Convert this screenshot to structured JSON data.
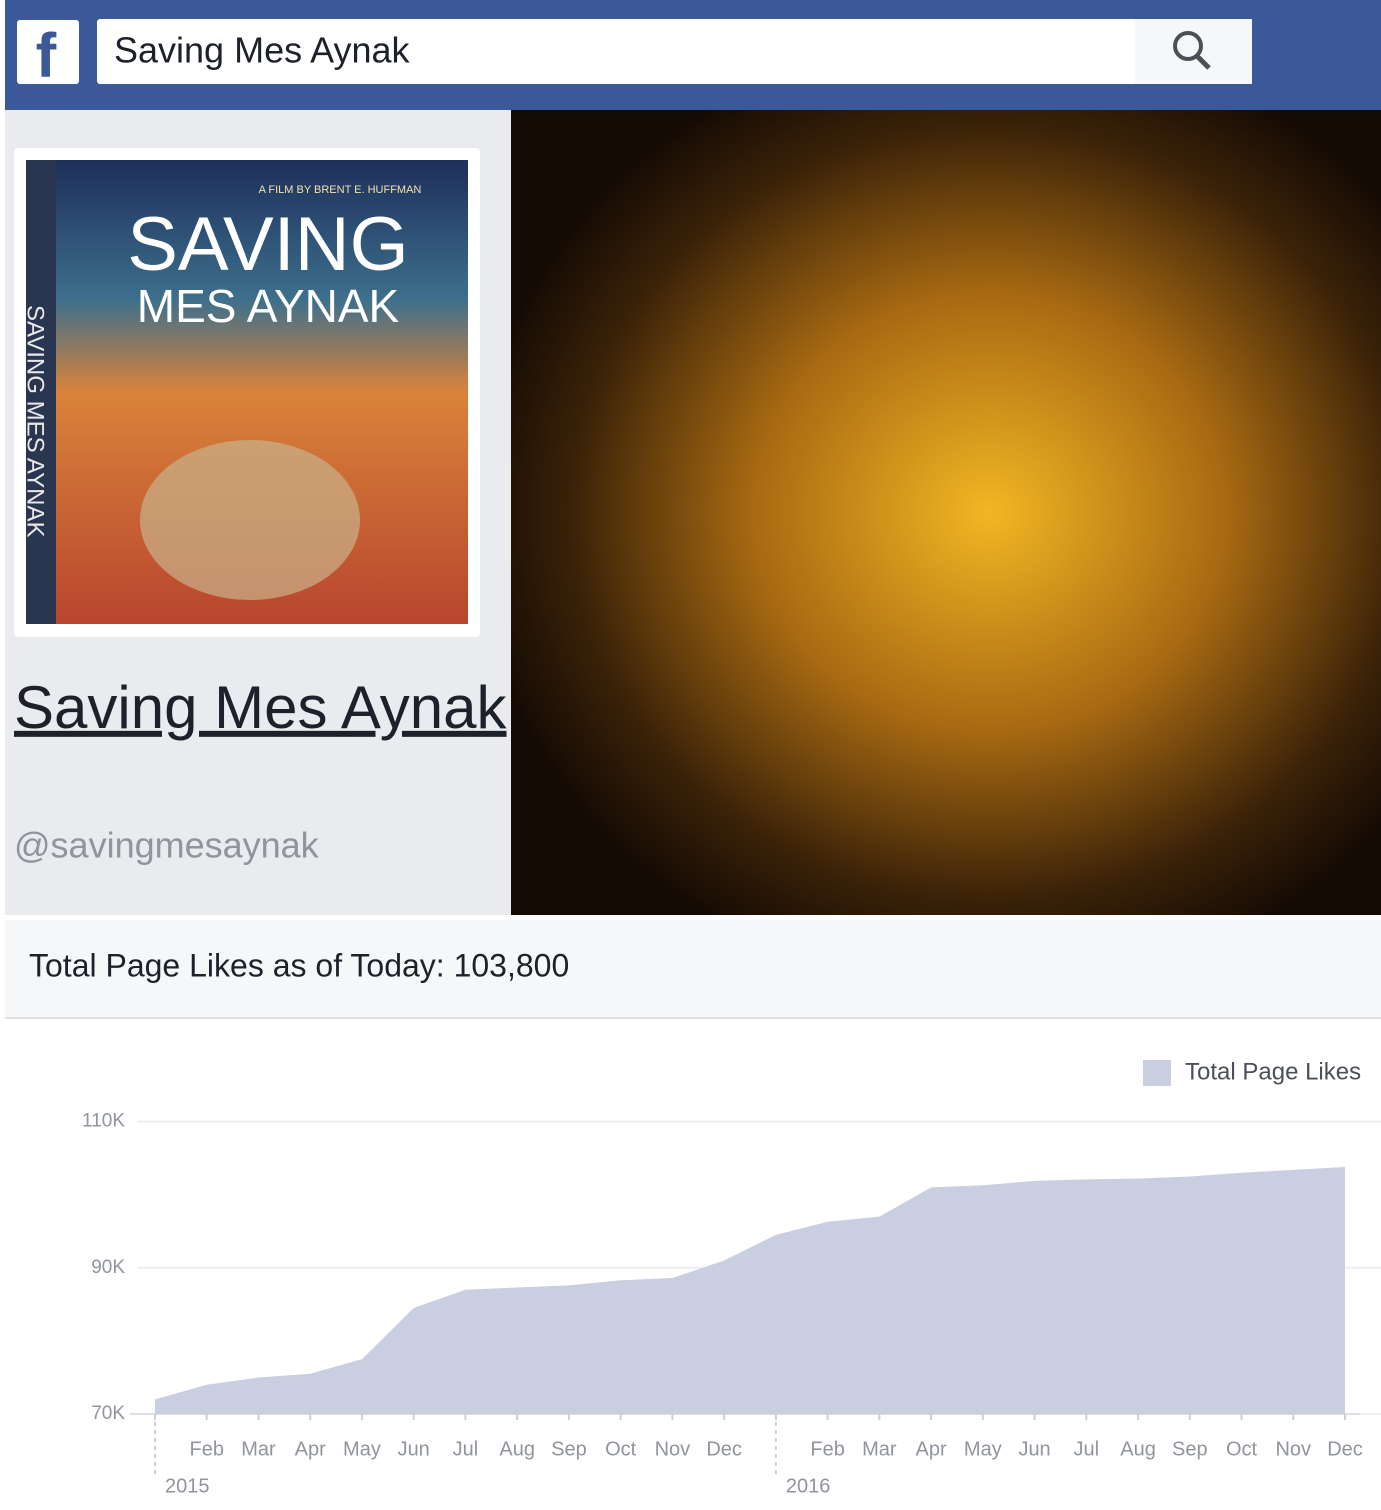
{
  "header": {
    "search_text": "Saving Mes Aynak"
  },
  "poster": {
    "credit": "A FILM BY BRENT E. HUFFMAN",
    "title_line1": "SAVING",
    "title_line2": "MES AYNAK",
    "spine": "SAVING MES AYNAK"
  },
  "profile": {
    "name": "Saving Mes Aynak",
    "handle": "@savingmesaynak"
  },
  "likes_summary": "Total Page Likes as of Today: 103,800",
  "chart_data": {
    "type": "area",
    "categories": [
      null,
      "Feb",
      "Mar",
      "Apr",
      "May",
      "Jun",
      "Jul",
      "Aug",
      "Sep",
      "Oct",
      "Nov",
      "Dec",
      null,
      "Feb",
      "Mar",
      "Apr",
      "May",
      "Jun",
      "Jul",
      "Aug",
      "Sep",
      "Oct",
      "Nov",
      "Dec"
    ],
    "year_labels": [
      "2015",
      "2016"
    ],
    "series": [
      {
        "name": "Total Page Likes",
        "color": "#c9cfe0",
        "values": [
          72000,
          74000,
          75000,
          75500,
          77500,
          84500,
          87000,
          87300,
          87600,
          88300,
          88600,
          91000,
          94500,
          96300,
          97000,
          101000,
          101300,
          101900,
          102100,
          102200,
          102500,
          103000,
          103400,
          103800
        ]
      }
    ],
    "ylim": [
      70000,
      112000
    ],
    "yticks": [
      {
        "value": 70000,
        "label": "70K"
      },
      {
        "value": 90000,
        "label": "90K"
      },
      {
        "value": 110000,
        "label": "110K"
      }
    ],
    "grid": true
  }
}
